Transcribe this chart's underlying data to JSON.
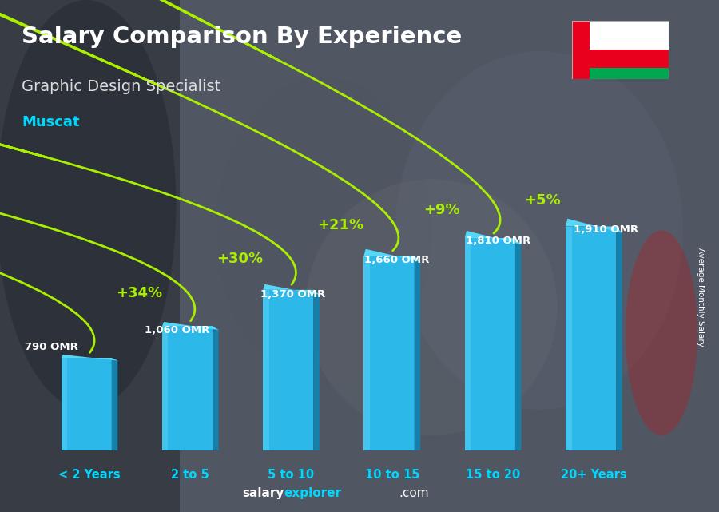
{
  "title": "Salary Comparison By Experience",
  "subtitle": "Graphic Design Specialist",
  "city": "Muscat",
  "ylabel": "Average Monthly Salary",
  "footer_bold": "salary",
  "footer_cyan": "explorer",
  "footer_plain": ".com",
  "categories": [
    "< 2 Years",
    "2 to 5",
    "5 to 10",
    "10 to 15",
    "15 to 20",
    "20+ Years"
  ],
  "values": [
    790,
    1060,
    1370,
    1660,
    1810,
    1910
  ],
  "labels": [
    "790 OMR",
    "1,060 OMR",
    "1,370 OMR",
    "1,660 OMR",
    "1,810 OMR",
    "1,910 OMR"
  ],
  "pct_labels": [
    "+34%",
    "+30%",
    "+21%",
    "+9%",
    "+5%"
  ],
  "bar_face_color": "#2cb8e8",
  "bar_right_color": "#1580aa",
  "bar_top_color": "#55d8f8",
  "background_color": "#555a60",
  "title_color": "#ffffff",
  "subtitle_color": "#dddddd",
  "city_color": "#00d8ff",
  "label_color": "#ffffff",
  "pct_color": "#aaee00",
  "arrow_color": "#aaee00",
  "cat_color": "#00d8ff",
  "footer_white": "#ffffff",
  "footer_cyan_color": "#00d8ff",
  "ylim": [
    0,
    2400
  ]
}
